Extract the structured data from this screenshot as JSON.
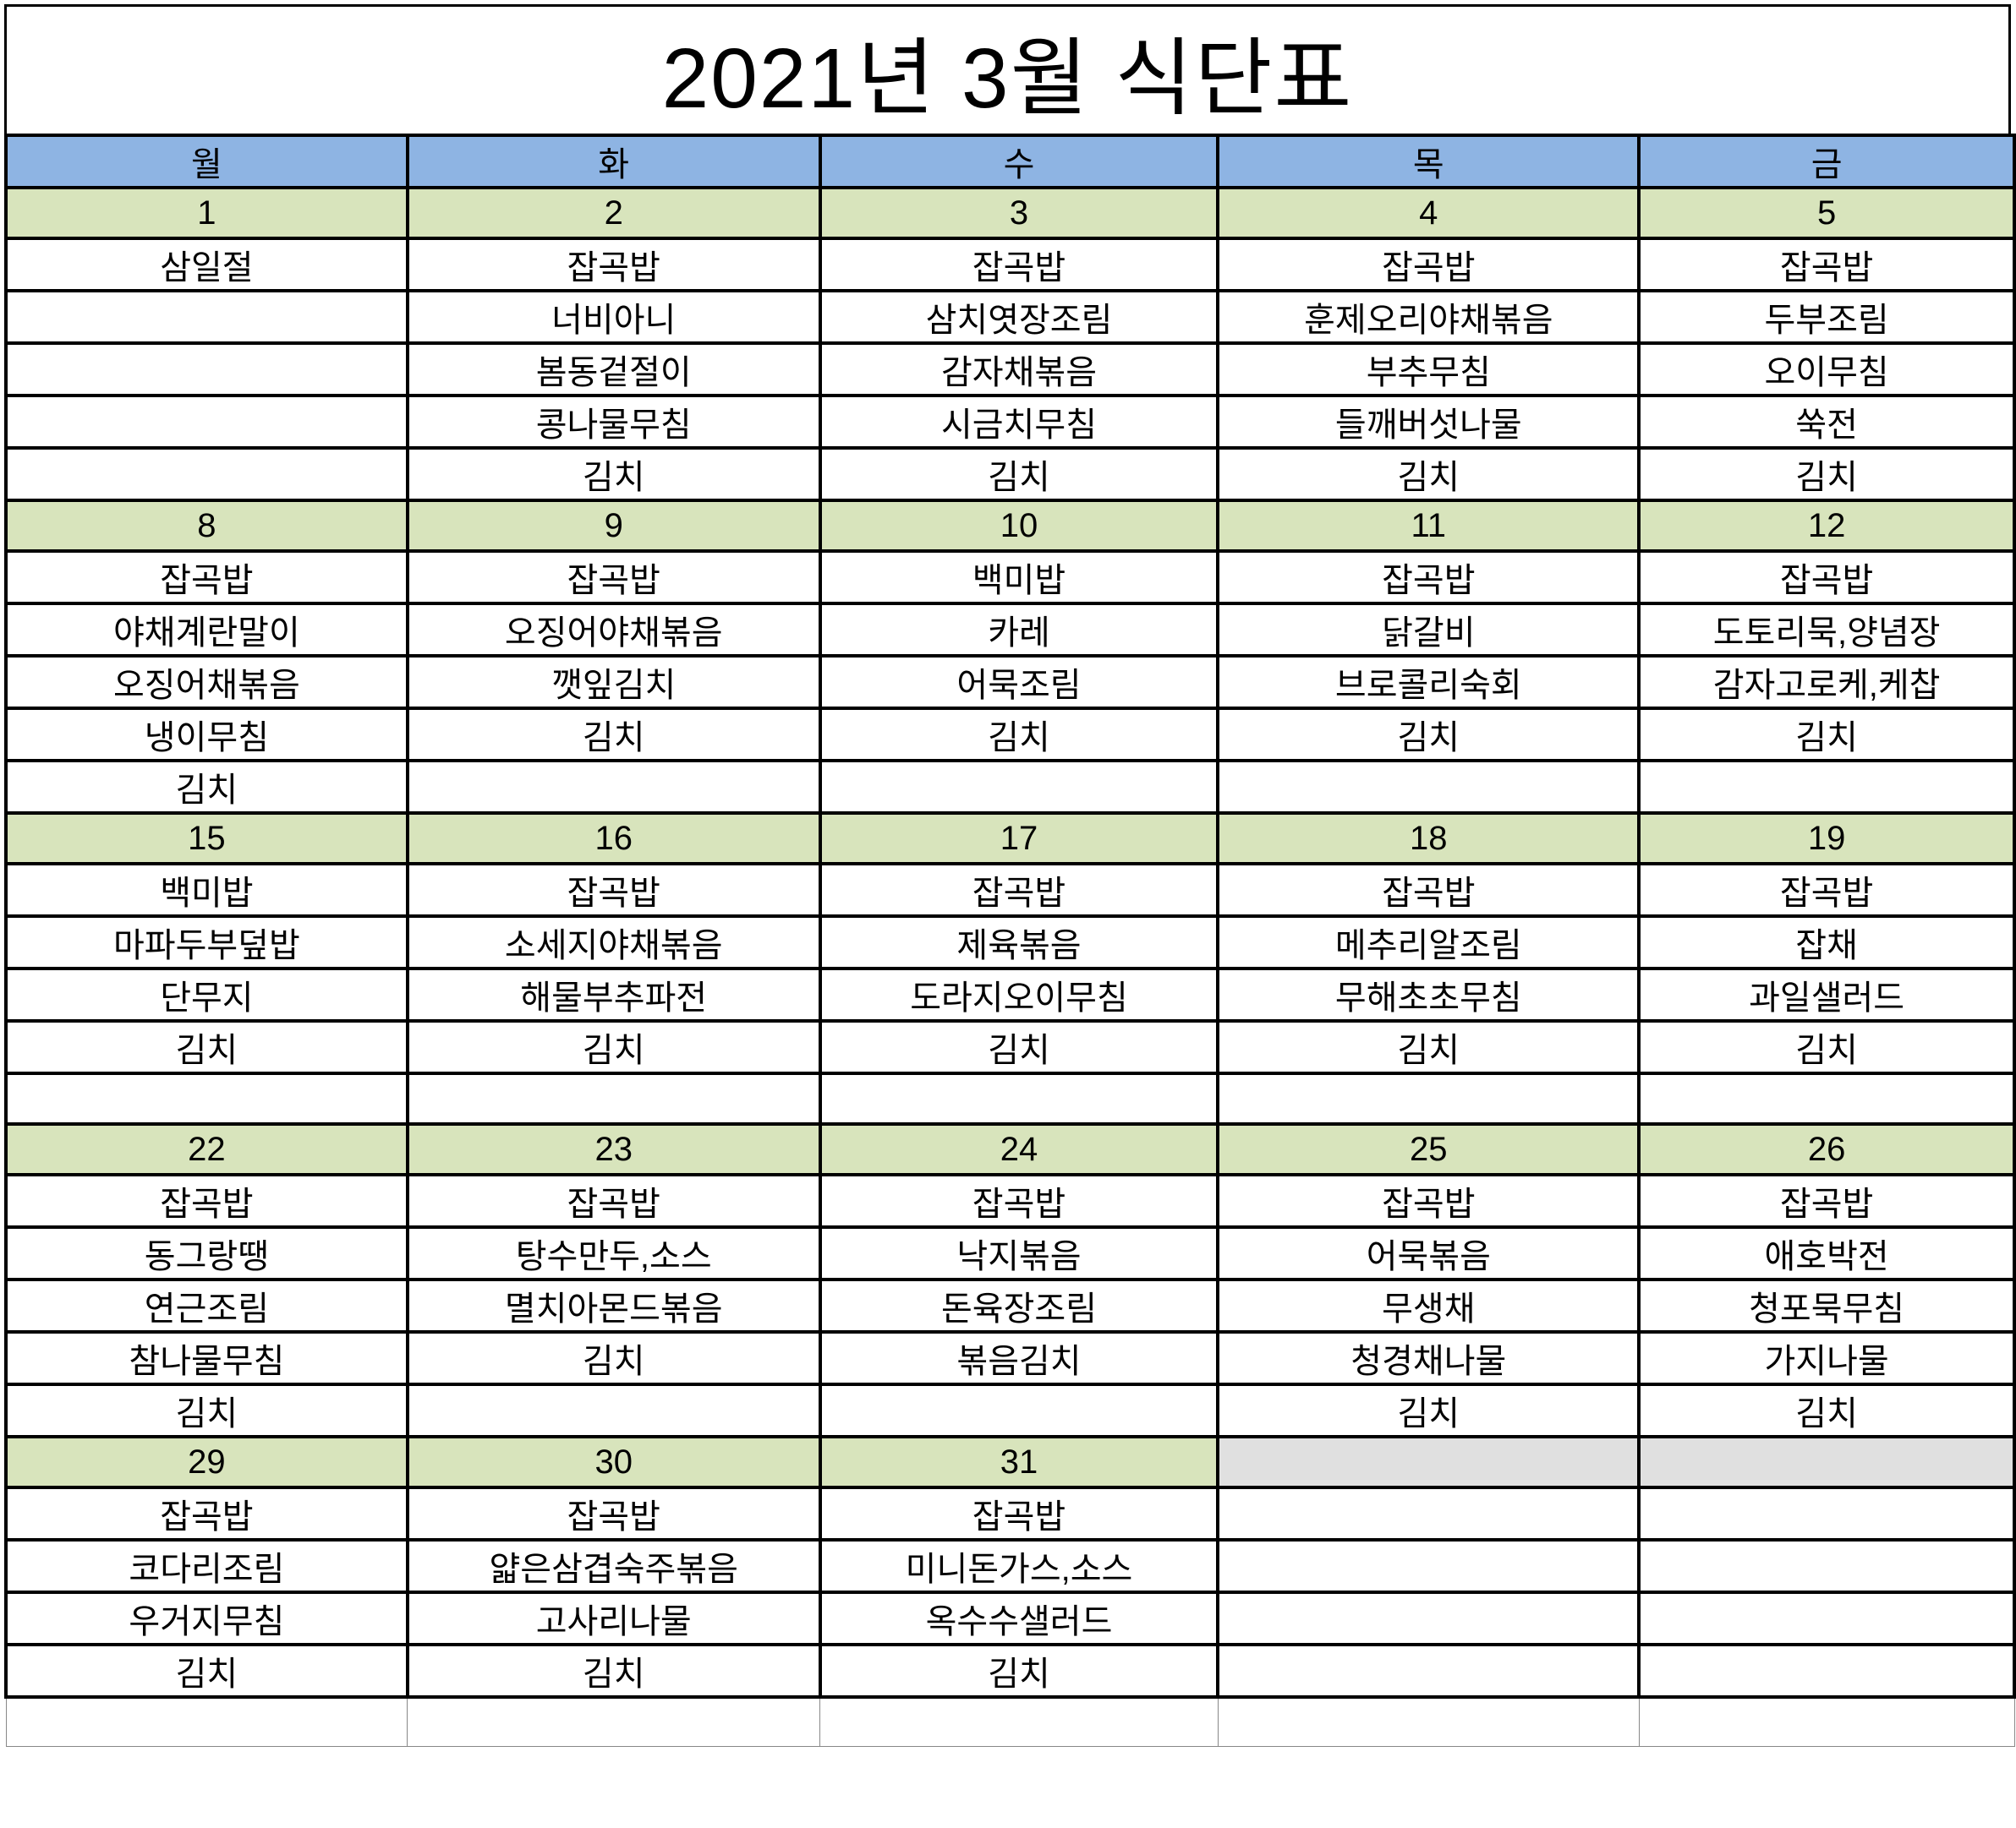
{
  "title": "2021년 3월 식단표",
  "colors": {
    "header_bg": "#8eb4e3",
    "date_bg": "#d8e4bc",
    "empty_date_bg": "#e0e0e0"
  },
  "weekdays": [
    "월",
    "화",
    "수",
    "목",
    "금"
  ],
  "weeks": [
    {
      "dates": [
        "1",
        "2",
        "3",
        "4",
        "5"
      ],
      "menus": [
        [
          "삼일절",
          "잡곡밥",
          "잡곡밥",
          "잡곡밥",
          "잡곡밥"
        ],
        [
          "",
          "너비아니",
          "삼치엿장조림",
          "훈제오리야채볶음",
          "두부조림"
        ],
        [
          "",
          "봄동겉절이",
          "감자채볶음",
          "부추무침",
          "오이무침"
        ],
        [
          "",
          "콩나물무침",
          "시금치무침",
          "들깨버섯나물",
          "쑥전"
        ],
        [
          "",
          "김치",
          "김치",
          "김치",
          "김치"
        ]
      ]
    },
    {
      "dates": [
        "8",
        "9",
        "10",
        "11",
        "12"
      ],
      "menus": [
        [
          "잡곡밥",
          "잡곡밥",
          "백미밥",
          "잡곡밥",
          "잡곡밥"
        ],
        [
          "야채계란말이",
          "오징어야채볶음",
          "카레",
          "닭갈비",
          "도토리묵,양념장"
        ],
        [
          "오징어채볶음",
          "깻잎김치",
          "어묵조림",
          "브로콜리숙회",
          "감자고로케,케찹"
        ],
        [
          "냉이무침",
          "김치",
          "김치",
          "김치",
          "김치"
        ],
        [
          "김치",
          "",
          "",
          "",
          ""
        ]
      ]
    },
    {
      "dates": [
        "15",
        "16",
        "17",
        "18",
        "19"
      ],
      "menus": [
        [
          "백미밥",
          "잡곡밥",
          "잡곡밥",
          "잡곡밥",
          "잡곡밥"
        ],
        [
          "마파두부덮밥",
          "소세지야채볶음",
          "제육볶음",
          "메추리알조림",
          "잡채"
        ],
        [
          "단무지",
          "해물부추파전",
          "도라지오이무침",
          "무해초초무침",
          "과일샐러드"
        ],
        [
          "김치",
          "김치",
          "김치",
          "김치",
          "김치"
        ],
        [
          "",
          "",
          "",
          "",
          ""
        ]
      ]
    },
    {
      "dates": [
        "22",
        "23",
        "24",
        "25",
        "26"
      ],
      "menus": [
        [
          "잡곡밥",
          "잡곡밥",
          "잡곡밥",
          "잡곡밥",
          "잡곡밥"
        ],
        [
          "동그랑땡",
          "탕수만두,소스",
          "낙지볶음",
          "어묵볶음",
          "애호박전"
        ],
        [
          "연근조림",
          "멸치아몬드볶음",
          "돈육장조림",
          "무생채",
          "청포묵무침"
        ],
        [
          "참나물무침",
          "김치",
          "볶음김치",
          "청경채나물",
          "가지나물"
        ],
        [
          "김치",
          "",
          "",
          "김치",
          "김치"
        ]
      ]
    },
    {
      "dates": [
        "29",
        "30",
        "31",
        "",
        ""
      ],
      "menus": [
        [
          "잡곡밥",
          "잡곡밥",
          "잡곡밥",
          "",
          ""
        ],
        [
          "코다리조림",
          "얇은삼겹숙주볶음",
          "미니돈가스,소스",
          "",
          ""
        ],
        [
          "우거지무침",
          "고사리나물",
          "옥수수샐러드",
          "",
          ""
        ],
        [
          "김치",
          "김치",
          "김치",
          "",
          ""
        ],
        [
          "",
          "",
          "",
          "",
          ""
        ]
      ]
    }
  ]
}
